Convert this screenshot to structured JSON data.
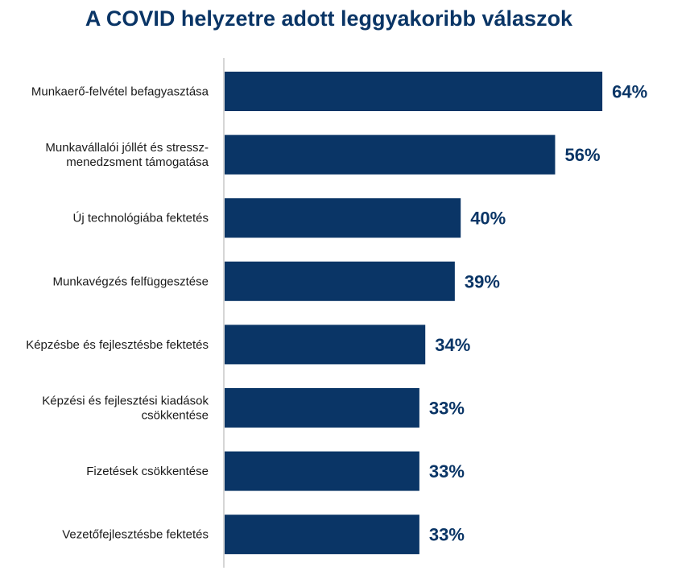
{
  "chart_data": {
    "type": "bar",
    "orientation": "horizontal",
    "title": "A COVID helyzetre adott leggyakoribb válaszok",
    "categories": [
      [
        "Munkaerő-felvétel befagyasztása"
      ],
      [
        "Munkavállalói jóllét és stressz-",
        "menedzsment támogatása"
      ],
      [
        "Új technológiába fektetés"
      ],
      [
        "Munkavégzés felfüggesztése"
      ],
      [
        "Képzésbe és fejlesztésbe fektetés"
      ],
      [
        "Képzési és fejlesztési kiadások",
        "csökkentése"
      ],
      [
        "Fizetések csökkentése"
      ],
      [
        "Vezetőfejlesztésbe fektetés"
      ]
    ],
    "values": [
      64,
      56,
      40,
      39,
      34,
      33,
      33,
      33
    ],
    "value_labels": [
      "64%",
      "56%",
      "40%",
      "39%",
      "34%",
      "33%",
      "33%",
      "33%"
    ],
    "bar_color": "#0a3566",
    "grid": false,
    "legend": "none"
  }
}
